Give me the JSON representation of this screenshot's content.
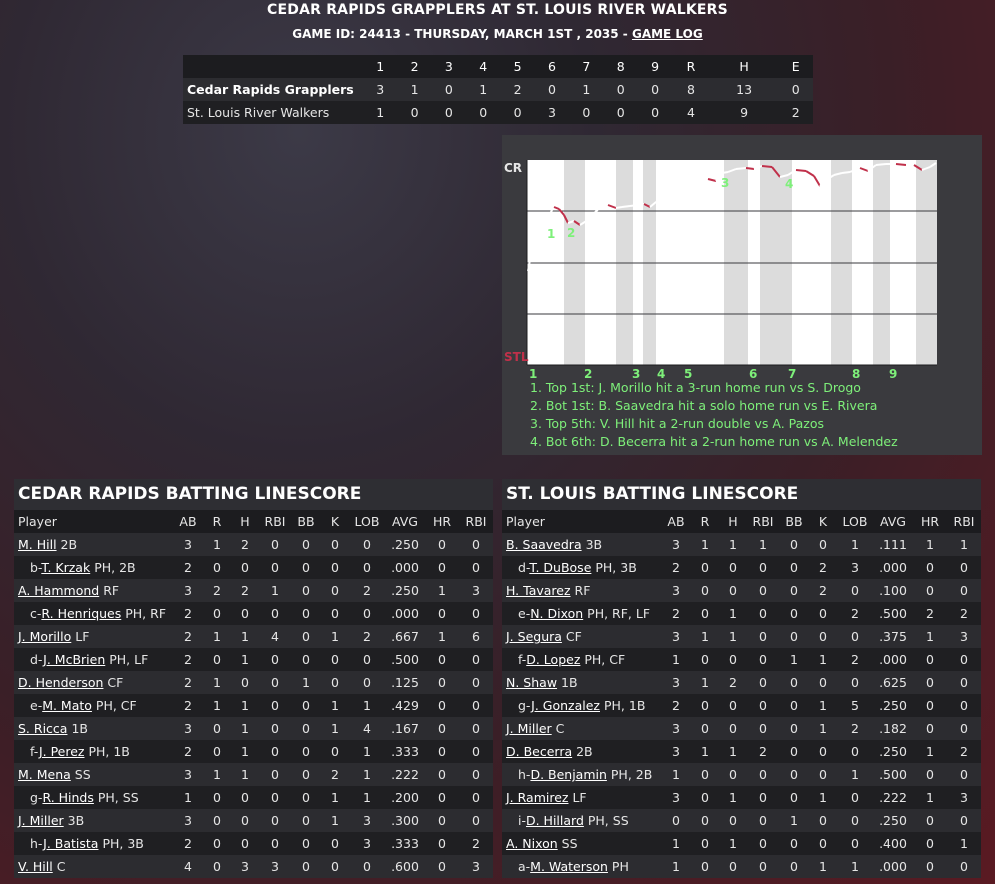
{
  "header": {
    "title": "CEDAR RAPIDS GRAPPLERS AT ST. LOUIS RIVER WALKERS",
    "game_info": "GAME ID: 24413 - THURSDAY, MARCH 1ST , 2035 -",
    "game_log_link": "GAME LOG"
  },
  "linescore": {
    "columns": [
      "1",
      "2",
      "3",
      "4",
      "5",
      "6",
      "7",
      "8",
      "9",
      "R",
      "H",
      "E"
    ],
    "rows": [
      {
        "team": "Cedar Rapids Grapplers",
        "values": [
          "3",
          "1",
          "0",
          "1",
          "2",
          "0",
          "1",
          "0",
          "0",
          "8",
          "13",
          "0"
        ]
      },
      {
        "team": "St. Louis River Walkers",
        "values": [
          "1",
          "0",
          "0",
          "0",
          "0",
          "3",
          "0",
          "0",
          "0",
          "4",
          "9",
          "2"
        ]
      }
    ]
  },
  "win_probability": {
    "top_label": "CR",
    "bottom_label": "STL",
    "innings": [
      "1",
      "2",
      "3",
      "4",
      "5",
      "6",
      "7",
      "8",
      "9"
    ],
    "markers": [
      "1",
      "2",
      "3",
      "4"
    ],
    "events": [
      "1. Top 1st: J. Morillo hit a 3-run home run vs S. Drogo",
      "2. Bot 1st: B. Saavedra hit a solo home run vs E. Rivera",
      "3. Top 5th: V. Hill hit a 2-run double vs A. Pazos",
      "4. Bot 6th: D. Becerra hit a 2-run home run vs A. Melendez"
    ],
    "colors": {
      "up": "#ffffff",
      "down": "#c0304a",
      "label": "#7ef07a",
      "stl": "#c0304a"
    }
  },
  "columns": [
    "Player",
    "AB",
    "R",
    "H",
    "RBI",
    "BB",
    "K",
    "LOB",
    "AVG",
    "HR",
    "RBI"
  ],
  "cr_batting": {
    "title": "CEDAR RAPIDS BATTING LINESCORE",
    "rows": [
      {
        "prefix": "",
        "name": "M. Hill",
        "pos": "2B",
        "stats": [
          "3",
          "1",
          "2",
          "0",
          "0",
          "0",
          "0",
          ".250",
          "0",
          "0"
        ]
      },
      {
        "prefix": "b-",
        "name": "T. Krzak",
        "pos": "PH, 2B",
        "stats": [
          "2",
          "0",
          "0",
          "0",
          "0",
          "0",
          "0",
          ".000",
          "0",
          "0"
        ]
      },
      {
        "prefix": "",
        "name": "A. Hammond",
        "pos": "RF",
        "stats": [
          "3",
          "2",
          "2",
          "1",
          "0",
          "0",
          "2",
          ".250",
          "1",
          "3"
        ]
      },
      {
        "prefix": "c-",
        "name": "R. Henriques",
        "pos": "PH, RF",
        "stats": [
          "2",
          "0",
          "0",
          "0",
          "0",
          "0",
          "0",
          ".000",
          "0",
          "0"
        ]
      },
      {
        "prefix": "",
        "name": "J. Morillo",
        "pos": "LF",
        "stats": [
          "2",
          "1",
          "1",
          "4",
          "0",
          "1",
          "2",
          ".667",
          "1",
          "6"
        ]
      },
      {
        "prefix": "d-",
        "name": "J. McBrien",
        "pos": "PH, LF",
        "stats": [
          "2",
          "0",
          "1",
          "0",
          "0",
          "0",
          "0",
          ".500",
          "0",
          "0"
        ]
      },
      {
        "prefix": "",
        "name": "D. Henderson",
        "pos": "CF",
        "stats": [
          "2",
          "1",
          "0",
          "0",
          "1",
          "0",
          "0",
          ".125",
          "0",
          "0"
        ]
      },
      {
        "prefix": "e-",
        "name": "M. Mato",
        "pos": "PH, CF",
        "stats": [
          "2",
          "1",
          "1",
          "0",
          "0",
          "1",
          "1",
          ".429",
          "0",
          "0"
        ]
      },
      {
        "prefix": "",
        "name": "S. Ricca",
        "pos": "1B",
        "stats": [
          "3",
          "0",
          "1",
          "0",
          "0",
          "1",
          "4",
          ".167",
          "0",
          "0"
        ]
      },
      {
        "prefix": "f-",
        "name": "J. Perez",
        "pos": "PH, 1B",
        "stats": [
          "2",
          "0",
          "1",
          "0",
          "0",
          "0",
          "1",
          ".333",
          "0",
          "0"
        ]
      },
      {
        "prefix": "",
        "name": "M. Mena",
        "pos": "SS",
        "stats": [
          "3",
          "1",
          "1",
          "0",
          "0",
          "2",
          "1",
          ".222",
          "0",
          "0"
        ]
      },
      {
        "prefix": "g-",
        "name": "R. Hinds",
        "pos": "PH, SS",
        "stats": [
          "1",
          "0",
          "0",
          "0",
          "0",
          "1",
          "1",
          ".200",
          "0",
          "0"
        ]
      },
      {
        "prefix": "",
        "name": "J. Miller",
        "pos": "3B",
        "stats": [
          "3",
          "0",
          "0",
          "0",
          "0",
          "1",
          "3",
          ".300",
          "0",
          "0"
        ]
      },
      {
        "prefix": "h-",
        "name": "J. Batista",
        "pos": "PH, 3B",
        "stats": [
          "2",
          "0",
          "0",
          "0",
          "0",
          "0",
          "3",
          ".333",
          "0",
          "2"
        ]
      },
      {
        "prefix": "",
        "name": "V. Hill",
        "pos": "C",
        "stats": [
          "4",
          "0",
          "3",
          "3",
          "0",
          "0",
          "0",
          ".600",
          "0",
          "3"
        ]
      }
    ]
  },
  "stl_batting": {
    "title": "ST. LOUIS BATTING LINESCORE",
    "rows": [
      {
        "prefix": "",
        "name": "B. Saavedra",
        "pos": "3B",
        "stats": [
          "3",
          "1",
          "1",
          "1",
          "0",
          "0",
          "1",
          ".111",
          "1",
          "1"
        ]
      },
      {
        "prefix": "d-",
        "name": "T. DuBose",
        "pos": "PH, 3B",
        "stats": [
          "2",
          "0",
          "0",
          "0",
          "0",
          "2",
          "3",
          ".000",
          "0",
          "0"
        ]
      },
      {
        "prefix": "",
        "name": "H. Tavarez",
        "pos": "RF",
        "stats": [
          "3",
          "0",
          "0",
          "0",
          "0",
          "2",
          "0",
          ".100",
          "0",
          "0"
        ]
      },
      {
        "prefix": "e-",
        "name": "N. Dixon",
        "pos": "PH, RF, LF",
        "stats": [
          "2",
          "0",
          "1",
          "0",
          "0",
          "0",
          "2",
          ".500",
          "2",
          "2"
        ]
      },
      {
        "prefix": "",
        "name": "J. Segura",
        "pos": "CF",
        "stats": [
          "3",
          "1",
          "1",
          "0",
          "0",
          "0",
          "0",
          ".375",
          "1",
          "3"
        ]
      },
      {
        "prefix": "f-",
        "name": "D. Lopez",
        "pos": "PH, CF",
        "stats": [
          "1",
          "0",
          "0",
          "0",
          "1",
          "1",
          "2",
          ".000",
          "0",
          "0"
        ]
      },
      {
        "prefix": "",
        "name": "N. Shaw",
        "pos": "1B",
        "stats": [
          "3",
          "1",
          "2",
          "0",
          "0",
          "0",
          "0",
          ".625",
          "0",
          "0"
        ]
      },
      {
        "prefix": "g-",
        "name": "J. Gonzalez",
        "pos": "PH, 1B",
        "stats": [
          "2",
          "0",
          "0",
          "0",
          "0",
          "1",
          "5",
          ".250",
          "0",
          "0"
        ]
      },
      {
        "prefix": "",
        "name": "J. Miller",
        "pos": "C",
        "stats": [
          "3",
          "0",
          "0",
          "0",
          "0",
          "1",
          "2",
          ".182",
          "0",
          "0"
        ]
      },
      {
        "prefix": "",
        "name": "D. Becerra",
        "pos": "2B",
        "stats": [
          "3",
          "1",
          "1",
          "2",
          "0",
          "0",
          "0",
          ".250",
          "1",
          "2"
        ]
      },
      {
        "prefix": "h-",
        "name": "D. Benjamin",
        "pos": "PH, 2B",
        "stats": [
          "1",
          "0",
          "0",
          "0",
          "0",
          "0",
          "1",
          ".500",
          "0",
          "0"
        ]
      },
      {
        "prefix": "",
        "name": "J. Ramirez",
        "pos": "LF",
        "stats": [
          "3",
          "0",
          "1",
          "0",
          "0",
          "1",
          "0",
          ".222",
          "1",
          "3"
        ]
      },
      {
        "prefix": "i-",
        "name": "D. Hillard",
        "pos": "PH, SS",
        "stats": [
          "0",
          "0",
          "0",
          "0",
          "1",
          "0",
          "0",
          ".250",
          "0",
          "0"
        ]
      },
      {
        "prefix": "",
        "name": "A. Nixon",
        "pos": "SS",
        "stats": [
          "1",
          "0",
          "1",
          "0",
          "0",
          "0",
          "0",
          ".400",
          "0",
          "1"
        ]
      },
      {
        "prefix": "a-",
        "name": "M. Waterson",
        "pos": "PH",
        "stats": [
          "1",
          "0",
          "0",
          "0",
          "0",
          "1",
          "1",
          ".000",
          "0",
          "0"
        ]
      }
    ]
  }
}
